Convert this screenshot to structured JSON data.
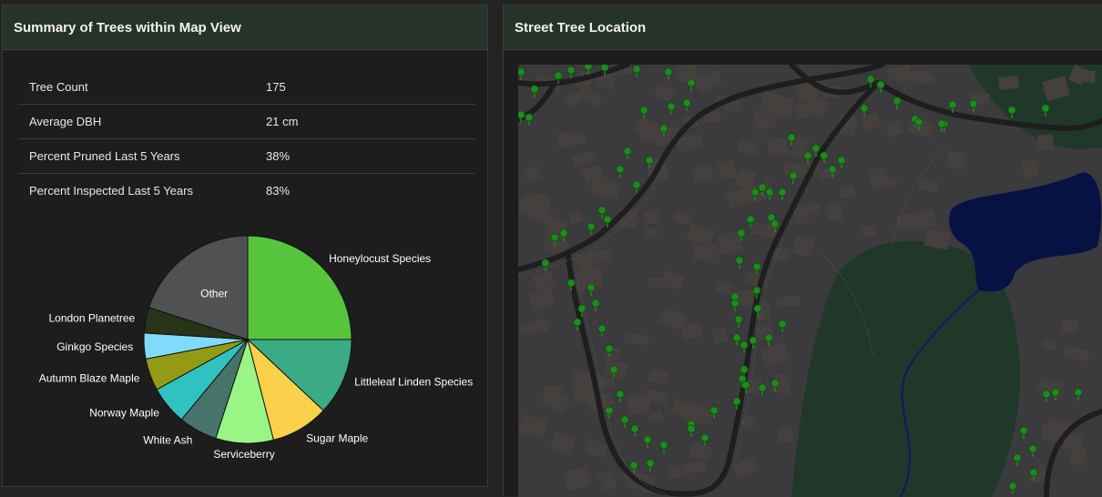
{
  "summary_panel": {
    "title": "Summary of Trees within Map View",
    "stats": [
      {
        "label": "Tree Count",
        "value": "175"
      },
      {
        "label": "Average DBH",
        "value": "21 cm"
      },
      {
        "label": "Percent Pruned Last 5 Years",
        "value": "38%"
      },
      {
        "label": "Percent Inspected Last 5 Years",
        "value": "83%"
      }
    ]
  },
  "map_panel": {
    "title": "Street Tree Location"
  },
  "colors": {
    "header_bg": "#263328",
    "panel_bg": "#1c1d1c",
    "tree_marker": "#1f8a1f",
    "water": "#071244",
    "park": "#20382a",
    "road": "#1e1e1e",
    "land": "#3b3a3c",
    "building": "#45403d"
  },
  "chart_data": {
    "type": "pie",
    "slices": [
      {
        "label": "Honeylocust Species",
        "value": 25,
        "color": "#56c43c"
      },
      {
        "label": "Littleleaf Linden Species",
        "value": 12,
        "color": "#3aab84"
      },
      {
        "label": "Sugar Maple",
        "value": 9,
        "color": "#fbd14b"
      },
      {
        "label": "Serviceberry",
        "value": 9,
        "color": "#99f685"
      },
      {
        "label": "White Ash",
        "value": 6,
        "color": "#47736a"
      },
      {
        "label": "Norway Maple",
        "value": 6,
        "color": "#30c2c0"
      },
      {
        "label": "Autumn Blaze Maple",
        "value": 5,
        "color": "#939a14"
      },
      {
        "label": "Ginkgo Species",
        "value": 4,
        "color": "#80dbfa"
      },
      {
        "label": "London Planetree",
        "value": 4,
        "color": "#283418"
      },
      {
        "label": "Other",
        "value": 20,
        "color": "#505153"
      }
    ]
  }
}
